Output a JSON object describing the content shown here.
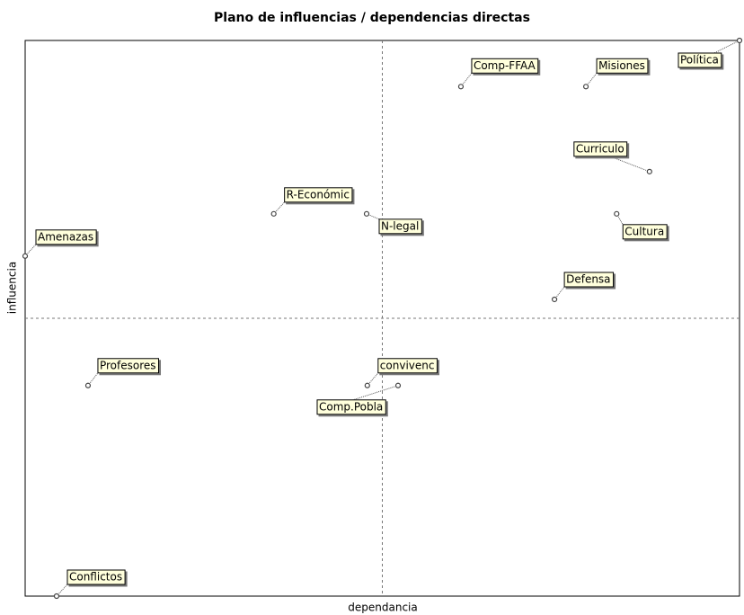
{
  "chart_data": {
    "type": "scatter",
    "title": "Plano de influencias / dependencias directas",
    "x_label": "dependancia",
    "y_label": "influencia",
    "labels": [
      "Comp-FFAA",
      "Misiones",
      "Política",
      "Curriculo",
      "R-Económic",
      "N-legal",
      "Cultura",
      "Amenazas",
      "Defensa",
      "Profesores",
      "convivenc",
      "Comp.Pobla",
      "Conflictos"
    ],
    "x": [
      61.0,
      78.5,
      100,
      87.4,
      34.8,
      47.8,
      82.8,
      0,
      74.1,
      8.8,
      47.9,
      52.2,
      4.4
    ],
    "values": [
      91.7,
      91.7,
      100,
      76.4,
      68.8,
      68.8,
      68.8,
      61.2,
      53.4,
      37.9,
      37.9,
      37.9,
      0
    ],
    "xlim": [
      0,
      100
    ],
    "ylim": [
      0,
      100
    ]
  }
}
